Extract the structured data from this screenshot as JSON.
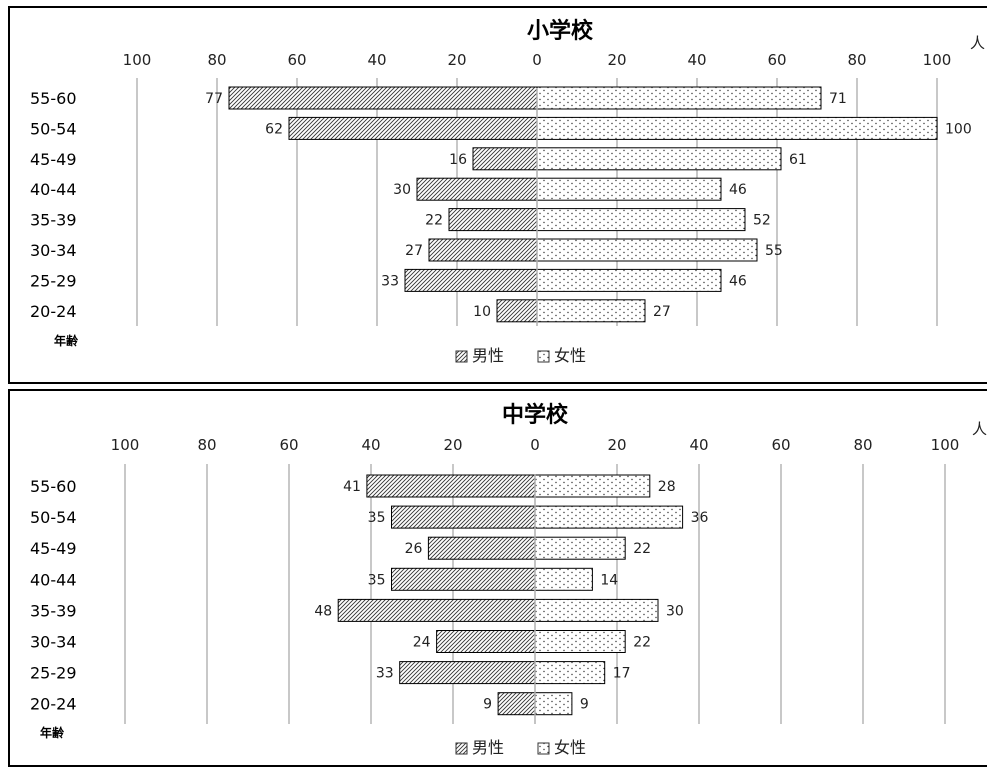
{
  "chart_data": [
    {
      "type": "bar",
      "orientation": "horizontal-butterfly",
      "title": "小学校",
      "unit": "人",
      "ylabel": "年齢",
      "categories": [
        "55-60",
        "50-54",
        "45-49",
        "40-44",
        "35-39",
        "30-34",
        "25-29",
        "20-24"
      ],
      "series": [
        {
          "name": "男性",
          "values": [
            77,
            62,
            16,
            30,
            22,
            27,
            33,
            10
          ]
        },
        {
          "name": "女性",
          "values": [
            71,
            100,
            61,
            46,
            52,
            55,
            46,
            27
          ]
        }
      ],
      "xlim": [
        -100,
        100
      ],
      "tick_labels": [
        "100",
        "80",
        "60",
        "40",
        "20",
        "0",
        "20",
        "40",
        "60",
        "80",
        "100"
      ],
      "grid": true,
      "legend_position": "bottom"
    },
    {
      "type": "bar",
      "orientation": "horizontal-butterfly",
      "title": "中学校",
      "unit": "人",
      "ylabel": "年齢",
      "categories": [
        "55-60",
        "50-54",
        "45-49",
        "40-44",
        "35-39",
        "30-34",
        "25-29",
        "20-24"
      ],
      "series": [
        {
          "name": "男性",
          "values": [
            41,
            35,
            26,
            35,
            48,
            24,
            33,
            9
          ]
        },
        {
          "name": "女性",
          "values": [
            28,
            36,
            22,
            14,
            30,
            22,
            17,
            9
          ]
        }
      ],
      "xlim": [
        -100,
        100
      ],
      "tick_labels": [
        "100",
        "80",
        "60",
        "40",
        "20",
        "0",
        "20",
        "40",
        "60",
        "80",
        "100"
      ],
      "grid": true,
      "legend_position": "bottom"
    }
  ]
}
